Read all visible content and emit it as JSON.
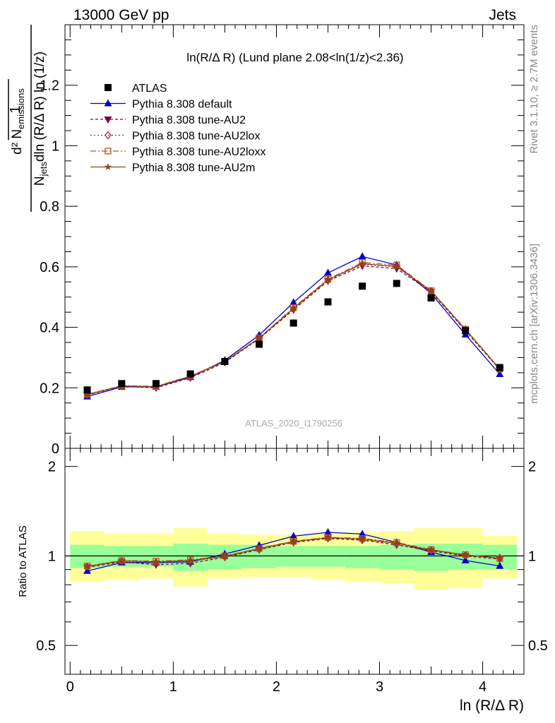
{
  "header": {
    "left": "13000 GeV pp",
    "right": "Jets"
  },
  "side": {
    "rivet": "Rivet 3.1.10, ≥ 2.7M events",
    "mcplots": "mcplots.cern.ch [arXiv:1306.3436]"
  },
  "watermark": "ATLAS_2020_I1790256",
  "colors": {
    "atlas": "#000000",
    "default": "#0000cc",
    "au2": "#800040",
    "au2lox": "#a02050",
    "au2loxx": "#c05020",
    "au2m": "#8a4a10",
    "band_inner": "#99ff99",
    "band_outer": "#ffff99"
  },
  "chart_data": [
    {
      "type": "scatter",
      "title": "ln(R/Δ R) (Lund plane 2.08<ln(1/z)<2.36)",
      "xlabel": "ln (R/Δ R)",
      "ylabel": "1/N_jets d²N_emissions/dln(R/Δ R) ln(1/z)",
      "xlim": [
        -0.05,
        4.4
      ],
      "ylim": [
        0,
        1.4
      ],
      "yticks": [
        0,
        0.2,
        0.4,
        0.6,
        0.8,
        1,
        1.2
      ],
      "ytick_labels": [
        "0",
        "0.2",
        "0.4",
        "0.6",
        "0.8",
        "1",
        "1.2"
      ],
      "legend_position": "top-left",
      "x": [
        0.166,
        0.5,
        0.833,
        1.166,
        1.5,
        1.833,
        2.166,
        2.5,
        2.833,
        3.166,
        3.5,
        3.833,
        4.166
      ],
      "series": [
        {
          "name": "ATLAS",
          "key": "atlas",
          "marker": "square",
          "values": [
            0.193,
            0.214,
            0.214,
            0.246,
            0.287,
            0.344,
            0.414,
            0.484,
            0.536,
            0.545,
            0.497,
            0.389,
            0.267
          ]
        },
        {
          "name": "Pythia 8.308 default",
          "key": "default",
          "marker": "triangle-up",
          "dash": "",
          "values": [
            0.171,
            0.203,
            0.203,
            0.235,
            0.291,
            0.374,
            0.482,
            0.58,
            0.634,
            0.606,
            0.512,
            0.376,
            0.245
          ]
        },
        {
          "name": "Pythia 8.308 tune-AU2",
          "key": "au2",
          "marker": "triangle-down",
          "dash": "4,3",
          "values": [
            0.176,
            0.205,
            0.2,
            0.233,
            0.284,
            0.362,
            0.458,
            0.553,
            0.603,
            0.594,
            0.517,
            0.389,
            0.26
          ]
        },
        {
          "name": "Pythia 8.308 tune-AU2lox",
          "key": "au2lox",
          "marker": "diamond-open",
          "dash": "2,3",
          "values": [
            0.177,
            0.206,
            0.203,
            0.236,
            0.286,
            0.363,
            0.461,
            0.556,
            0.608,
            0.6,
            0.52,
            0.392,
            0.263
          ]
        },
        {
          "name": "Pythia 8.308 tune-AU2loxx",
          "key": "au2loxx",
          "marker": "square-open",
          "dash": "8,3,2,3",
          "values": [
            0.179,
            0.207,
            0.205,
            0.239,
            0.288,
            0.365,
            0.465,
            0.559,
            0.614,
            0.606,
            0.521,
            0.394,
            0.262
          ]
        },
        {
          "name": "Pythia 8.308 tune-AU2m",
          "key": "au2m",
          "marker": "star",
          "dash": "",
          "values": [
            0.178,
            0.206,
            0.204,
            0.238,
            0.287,
            0.364,
            0.463,
            0.557,
            0.61,
            0.601,
            0.52,
            0.393,
            0.262
          ]
        }
      ]
    },
    {
      "type": "scatter",
      "title": "",
      "xlabel": "ln (R/Δ R)",
      "ylabel": "Ratio to ATLAS",
      "xlim": [
        -0.05,
        4.4
      ],
      "ylim": [
        0.4,
        2.3
      ],
      "log_y": true,
      "yticks": [
        0.5,
        1,
        2
      ],
      "ytick_labels": [
        "0.5",
        "1",
        "2"
      ],
      "xticks": [
        0,
        1,
        2,
        3,
        4
      ],
      "xtick_labels": [
        "0",
        "1",
        "2",
        "3",
        "4"
      ],
      "reference_line": 1,
      "x": [
        0.166,
        0.5,
        0.833,
        1.166,
        1.5,
        1.833,
        2.166,
        2.5,
        2.833,
        3.166,
        3.5,
        3.833,
        4.166
      ],
      "bins": [
        [
          0,
          0.333
        ],
        [
          0.333,
          0.666
        ],
        [
          0.666,
          1.0
        ],
        [
          1.0,
          1.333
        ],
        [
          1.333,
          1.666
        ],
        [
          1.666,
          2.0
        ],
        [
          2.0,
          2.333
        ],
        [
          2.333,
          2.666
        ],
        [
          2.666,
          3.0
        ],
        [
          3.0,
          3.333
        ],
        [
          3.333,
          3.666
        ],
        [
          3.666,
          4.0
        ],
        [
          4.0,
          4.333
        ]
      ],
      "band_inner": {
        "low": [
          0.91,
          0.92,
          0.92,
          0.89,
          0.9,
          0.91,
          0.92,
          0.92,
          0.91,
          0.9,
          0.89,
          0.9,
          0.9
        ],
        "high": [
          1.09,
          1.08,
          1.08,
          1.1,
          1.09,
          1.09,
          1.08,
          1.08,
          1.08,
          1.09,
          1.1,
          1.1,
          1.09
        ]
      },
      "band_outer": {
        "low": [
          0.82,
          0.83,
          0.84,
          0.79,
          0.84,
          0.85,
          0.85,
          0.83,
          0.82,
          0.81,
          0.77,
          0.78,
          0.84
        ],
        "high": [
          1.21,
          1.19,
          1.19,
          1.24,
          1.19,
          1.18,
          1.18,
          1.19,
          1.2,
          1.21,
          1.24,
          1.24,
          1.17
        ]
      },
      "series": [
        {
          "name": "Pythia 8.308 default",
          "key": "default",
          "marker": "triangle-up",
          "dash": "",
          "values": [
            0.89,
            0.95,
            0.95,
            0.955,
            1.015,
            1.085,
            1.165,
            1.2,
            1.185,
            1.11,
            1.03,
            0.965,
            0.925
          ]
        },
        {
          "name": "Pythia 8.308 tune-AU2",
          "key": "au2",
          "marker": "triangle-down",
          "dash": "4,3",
          "values": [
            0.915,
            0.955,
            0.935,
            0.945,
            0.99,
            1.05,
            1.11,
            1.145,
            1.13,
            1.09,
            1.04,
            1.0,
            0.975
          ]
        },
        {
          "name": "Pythia 8.308 tune-AU2lox",
          "key": "au2lox",
          "marker": "diamond-open",
          "dash": "2,3",
          "values": [
            0.92,
            0.96,
            0.95,
            0.96,
            0.995,
            1.055,
            1.115,
            1.15,
            1.135,
            1.1,
            1.045,
            1.005,
            0.985
          ]
        },
        {
          "name": "Pythia 8.308 tune-AU2loxx",
          "key": "au2loxx",
          "marker": "square-open",
          "dash": "8,3,2,3",
          "values": [
            0.925,
            0.965,
            0.96,
            0.97,
            1.0,
            1.06,
            1.12,
            1.155,
            1.145,
            1.11,
            1.05,
            1.01,
            0.98
          ]
        },
        {
          "name": "Pythia 8.308 tune-AU2m",
          "key": "au2m",
          "marker": "star",
          "dash": "",
          "values": [
            0.922,
            0.963,
            0.955,
            0.965,
            0.998,
            1.058,
            1.118,
            1.152,
            1.14,
            1.103,
            1.047,
            1.008,
            0.982
          ]
        }
      ]
    }
  ]
}
